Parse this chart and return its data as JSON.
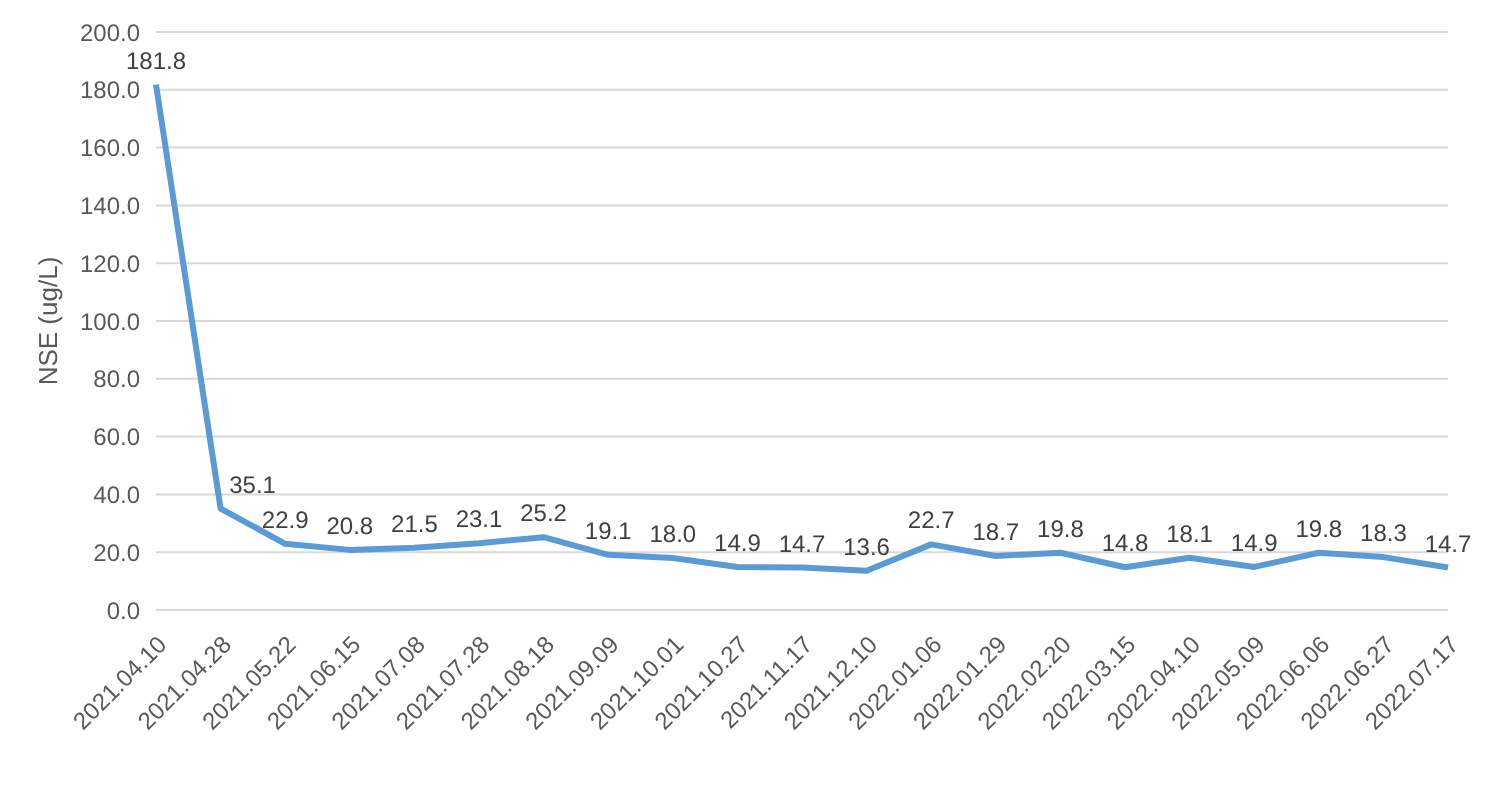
{
  "chart_data": {
    "type": "line",
    "ylabel": "NSE (ug/L)",
    "categories": [
      "2021.04.10",
      "2021.04.28",
      "2021.05.22",
      "2021.06.15",
      "2021.07.08",
      "2021.07.28",
      "2021.08.18",
      "2021.09.09",
      "2021.10.01",
      "2021.10.27",
      "2021.11.17",
      "2021.12.10",
      "2022.01.06",
      "2022.01.29",
      "2022.02.20",
      "2022.03.15",
      "2022.04.10",
      "2022.05.09",
      "2022.06.06",
      "2022.06.27",
      "2022.07.17"
    ],
    "values": [
      181.8,
      35.1,
      22.9,
      20.8,
      21.5,
      23.1,
      25.2,
      19.1,
      18.0,
      14.9,
      14.7,
      13.6,
      22.7,
      18.7,
      19.8,
      14.8,
      18.1,
      14.9,
      19.8,
      18.3,
      14.7
    ],
    "value_labels": [
      "181.8",
      "35.1",
      "22.9",
      "20.8",
      "21.5",
      "23.1",
      "25.2",
      "19.1",
      "18.0",
      "14.9",
      "14.7",
      "13.6",
      "22.7",
      "18.7",
      "19.8",
      "14.8",
      "18.1",
      "14.9",
      "19.8",
      "18.3",
      "14.7"
    ],
    "color": "#5b9bd5",
    "ylim": [
      0,
      200
    ],
    "yticks": [
      {
        "value": 0,
        "label": "0.0"
      },
      {
        "value": 20,
        "label": "20.0"
      },
      {
        "value": 40,
        "label": "40.0"
      },
      {
        "value": 60,
        "label": "60.0"
      },
      {
        "value": 80,
        "label": "80.0"
      },
      {
        "value": 100,
        "label": "100.0"
      },
      {
        "value": 120,
        "label": "120.0"
      },
      {
        "value": 140,
        "label": "140.0"
      },
      {
        "value": 160,
        "label": "160.0"
      },
      {
        "value": 180,
        "label": "180.0"
      },
      {
        "value": 200,
        "label": "200.0"
      }
    ],
    "grid": "y",
    "marker": "none",
    "line_style": "solid",
    "legend": false
  }
}
